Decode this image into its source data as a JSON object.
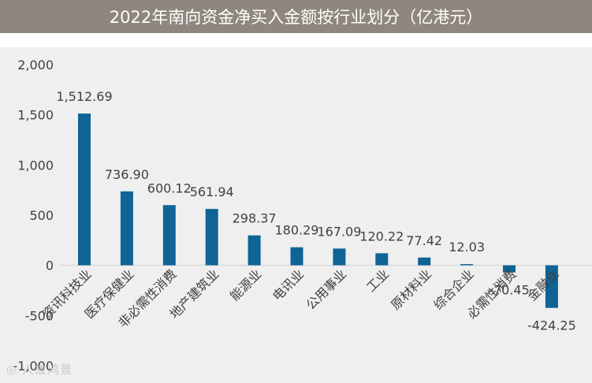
{
  "chart_data": {
    "type": "bar",
    "title": "2022年南向资金净买入金额按行业划分（亿港元）",
    "xlabel": "",
    "ylabel": "",
    "ylim": [
      -1000,
      2000
    ],
    "yticks": [
      -1000,
      -500,
      0,
      500,
      1000,
      1500,
      2000
    ],
    "ytick_labels": [
      "-1,000",
      "-500",
      "0",
      "500",
      "1,000",
      "1,500",
      "2,000"
    ],
    "grid": false,
    "bar_color": "#0f6496",
    "categories": [
      "资讯科技业",
      "医疗保健业",
      "非必需性消费",
      "地产建筑业",
      "能源业",
      "电讯业",
      "公用事业",
      "工业",
      "原材料业",
      "综合企业",
      "必需性消费",
      "金融业"
    ],
    "values": [
      1512.69,
      736.9,
      600.12,
      561.94,
      298.37,
      180.29,
      167.09,
      120.22,
      77.42,
      12.03,
      -70.45,
      -424.25
    ],
    "data_labels": [
      "1,512.69",
      "736.90",
      "600.12",
      "561.94",
      "298.37",
      "180.29",
      "167.09",
      "120.22",
      "77.42",
      "12.03",
      "-70.45",
      "-424.25"
    ]
  },
  "watermark": "◎ 人故鸿景"
}
